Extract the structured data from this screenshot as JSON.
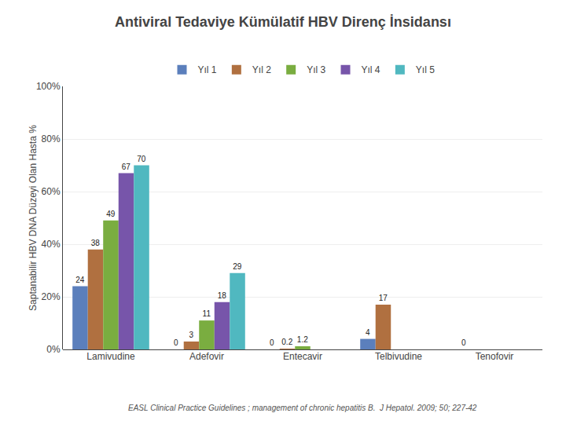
{
  "chart_data": {
    "type": "bar",
    "title": "Antiviral Tedaviye Kümülatif HBV Direnç İnsidansı",
    "ylabel": "Saptanabilir HBV DNA Düzeyi Olan Hasta %",
    "annotations": [
      "EASL Clinical Practice Guidelines ; management of chronic hepatitis B.  J Hepatol. 2009; 50; 227-42"
    ],
    "categories": [
      "Lamivudine",
      "Adefovir",
      "Entecavir",
      "Telbivudine",
      "Tenofovir"
    ],
    "series": [
      {
        "name": "Yıl 1",
        "color": "#5b7fbc",
        "values": [
          24,
          0,
          0,
          4,
          0
        ]
      },
      {
        "name": "Yıl 2",
        "color": "#b07040",
        "values": [
          38,
          3,
          0.2,
          17,
          null
        ]
      },
      {
        "name": "Yıl 3",
        "color": "#7aad40",
        "values": [
          49,
          11,
          1.2,
          null,
          null
        ]
      },
      {
        "name": "Yıl 4",
        "color": "#7755aa",
        "values": [
          67,
          18,
          null,
          null,
          null
        ]
      },
      {
        "name": "Yıl 5",
        "color": "#50b8c0",
        "values": [
          70,
          29,
          null,
          null,
          null
        ]
      }
    ],
    "ylim": [
      0,
      100
    ],
    "yticks": [
      {
        "value": 0,
        "label": "0%"
      },
      {
        "value": 20,
        "label": "20%"
      },
      {
        "value": 40,
        "label": "40%"
      },
      {
        "value": 60,
        "label": "60%"
      },
      {
        "value": 80,
        "label": "80%"
      },
      {
        "value": 100,
        "label": "100%"
      }
    ],
    "grid": true,
    "legend": "top",
    "data_labels": true
  }
}
